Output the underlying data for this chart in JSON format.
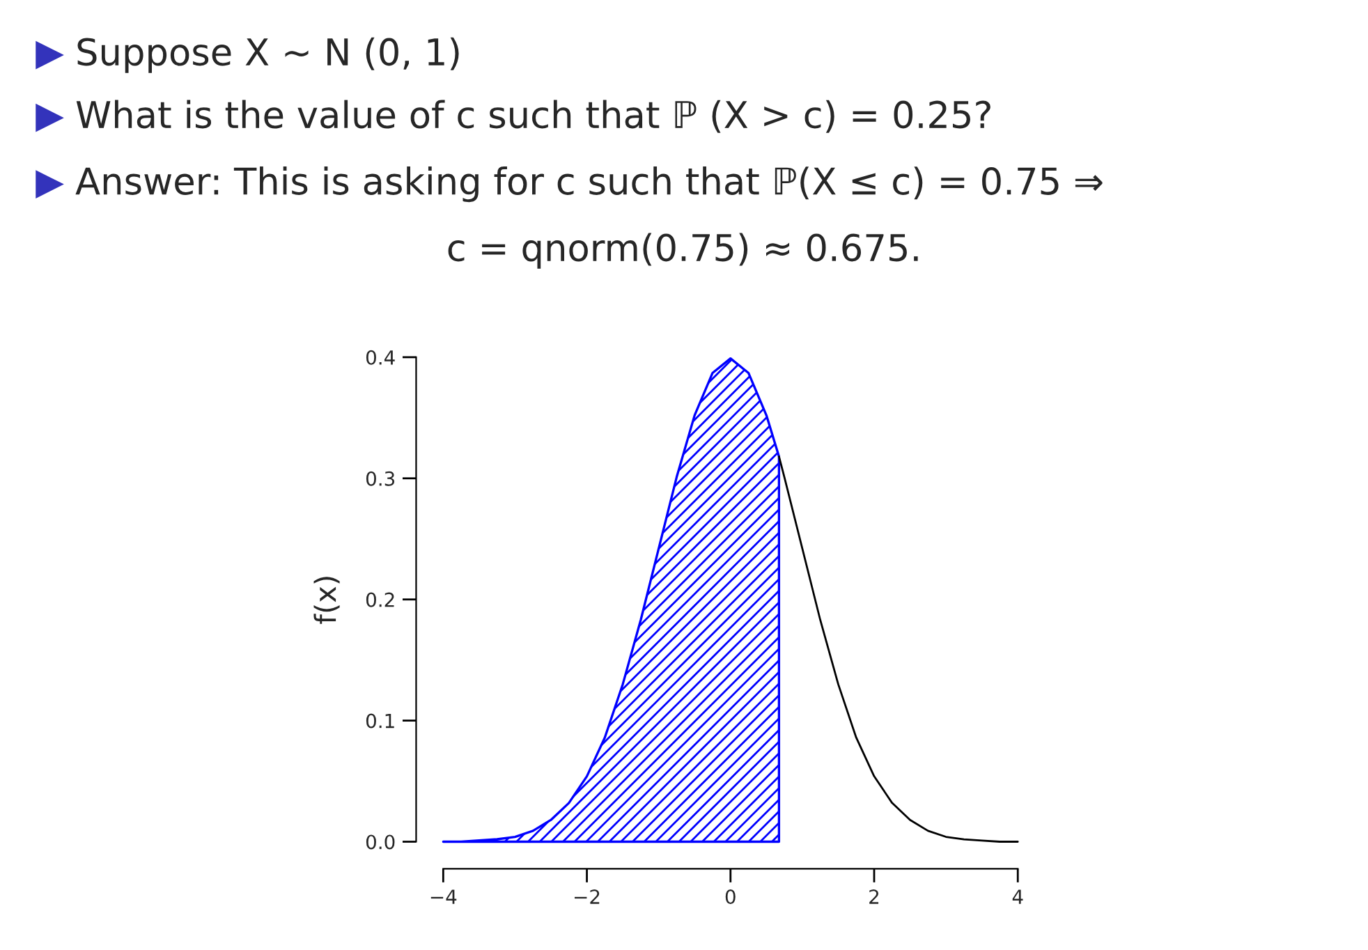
{
  "chart_data": {
    "type": "line",
    "ylabel": "f(x)",
    "annotations": [
      "Suppose X ∼ N (0, 1)",
      "What is the value of c such that ℙ (X > c) = 0.25?",
      "Answer: This is asking for c such that ℙ(X ≤ c) = 0.75 ⇒",
      "c = qnorm(0.75) ≈ 0.675."
    ],
    "series": [
      {
        "color": "#000000",
        "x": [
          0.675,
          0.75,
          1,
          1.25,
          1.5,
          1.75,
          2,
          2.25,
          2.5,
          2.75,
          3,
          3.25,
          3.5,
          3.75,
          4
        ],
        "values": [
          0.318,
          0.301,
          0.242,
          0.183,
          0.13,
          0.086,
          0.054,
          0.032,
          0.018,
          0.009,
          0.004,
          0.002,
          0.001,
          0.0,
          0.0
        ]
      },
      {
        "type": "area",
        "color": "#0000ff",
        "x": [
          -4,
          -3.75,
          -3.5,
          -3.25,
          -3,
          -2.75,
          -2.5,
          -2.25,
          -2,
          -1.75,
          -1.5,
          -1.25,
          -1,
          -0.75,
          -0.5,
          -0.25,
          0,
          0.25,
          0.5,
          0.675
        ],
        "values": [
          0.0,
          0.0,
          0.001,
          0.002,
          0.004,
          0.009,
          0.018,
          0.032,
          0.054,
          0.086,
          0.13,
          0.183,
          0.242,
          0.301,
          0.352,
          0.387,
          0.399,
          0.387,
          0.352,
          0.318
        ]
      }
    ],
    "xlim": [
      -4,
      4
    ],
    "ylim": [
      0,
      0.4
    ],
    "xticks": [
      {
        "value": -4,
        "label": "−4"
      },
      {
        "value": -2,
        "label": "−2"
      },
      0,
      2,
      4
    ],
    "yticks": [
      {
        "value": 0,
        "label": "0.0"
      },
      0.1,
      0.2,
      0.3,
      0.4
    ],
    "grid": false,
    "legend": false
  }
}
